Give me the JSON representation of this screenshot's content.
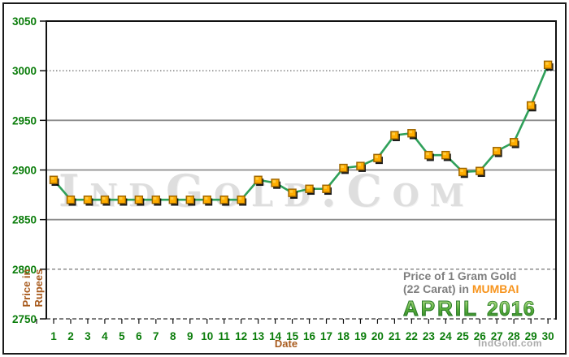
{
  "page": {
    "background": "#ffffff"
  },
  "watermark": {
    "text": "IndGold.Com"
  },
  "credit": {
    "text": "IndGold.com"
  },
  "axes": {
    "y_title_line1": "Price in",
    "y_title_line2": "Rupees",
    "x_title": "Date"
  },
  "annotation": {
    "line1": "Price of 1 Gram Gold",
    "line2_prefix": "(22 Carat) in ",
    "city": "MUMBAI",
    "month": "APRIL",
    "year": "2016"
  },
  "colors": {
    "tick_label_green": "#0b7d0b",
    "axis_title_brown": "#a85b1e",
    "annotation_gray": "#7f7f7f",
    "city_orange": "#f7941d",
    "month_green": "#4ba338",
    "line_green": "#2fa05a",
    "marker_orange": "#ffad00",
    "marker_border": "#9c6500",
    "grid_gray": "#8c8c8c"
  },
  "chart_data": {
    "type": "line",
    "title": "Price of 1 Gram Gold (22 Carat) in MUMBAI - APRIL 2016",
    "xlabel": "Date",
    "ylabel": "Price in Rupees",
    "x": [
      1,
      2,
      3,
      4,
      5,
      6,
      7,
      8,
      9,
      10,
      11,
      12,
      13,
      14,
      15,
      16,
      17,
      18,
      19,
      20,
      21,
      22,
      23,
      24,
      25,
      26,
      27,
      28,
      29,
      30
    ],
    "values": [
      2890,
      2870,
      2870,
      2870,
      2870,
      2870,
      2870,
      2870,
      2870,
      2870,
      2870,
      2870,
      2890,
      2887,
      2877,
      2881,
      2881,
      2902,
      2904,
      2912,
      2935,
      2937,
      2915,
      2915,
      2898,
      2899,
      2919,
      2928,
      2965,
      3006
    ],
    "ylim": [
      2750,
      3050
    ],
    "y_ticks": [
      3050,
      3000,
      2950,
      2900,
      2850,
      2800,
      2750
    ],
    "grid": "horizontal",
    "legend": "none",
    "marker": "square",
    "line_color": "#2fa05a",
    "marker_color": "#ffad00",
    "marker_border": "#9c6500"
  }
}
